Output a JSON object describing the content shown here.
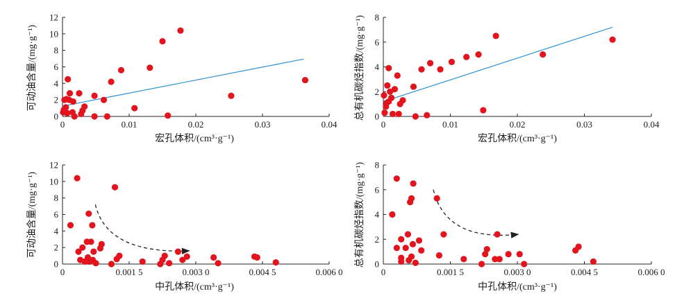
{
  "colors": {
    "point": "#e2141e",
    "fit_line": "#2a8fd4",
    "axis": "#222222",
    "trend_arrow": "#222222"
  },
  "chart_data": [
    {
      "type": "scatter",
      "xlabel": "宏孔体积/(cm³·g⁻¹)",
      "ylabel": "可动油含量/(mg·g⁻¹)",
      "xlim": [
        0,
        0.04
      ],
      "ylim": [
        0,
        12
      ],
      "xticks": [
        0,
        0.01,
        0.02,
        0.03,
        0.04
      ],
      "xtick_labels": [
        "0",
        "0.01",
        "0.02",
        "0.03",
        "0.04"
      ],
      "yticks": [
        0,
        2,
        4,
        6,
        8,
        10,
        12
      ],
      "ytick_labels": [
        "0",
        "2",
        "4",
        "6",
        "8",
        "10",
        "12"
      ],
      "fit_line": {
        "x": [
          0,
          0.0362
        ],
        "y": [
          1.25,
          6.95
        ]
      },
      "points": [
        {
          "x": 0.0001,
          "y": 0.5
        },
        {
          "x": 0.0002,
          "y": 0.8
        },
        {
          "x": 0.0003,
          "y": 2.0
        },
        {
          "x": 0.0006,
          "y": 2.1
        },
        {
          "x": 0.0005,
          "y": 1.1
        },
        {
          "x": 0.0007,
          "y": 0.4
        },
        {
          "x": 0.0008,
          "y": 4.5
        },
        {
          "x": 0.001,
          "y": 2.0
        },
        {
          "x": 0.0011,
          "y": 2.8
        },
        {
          "x": 0.0016,
          "y": 1.8
        },
        {
          "x": 0.0015,
          "y": 0.5
        },
        {
          "x": 0.0018,
          "y": 0.0
        },
        {
          "x": 0.0025,
          "y": 2.8
        },
        {
          "x": 0.0028,
          "y": 0.3
        },
        {
          "x": 0.003,
          "y": 0.7
        },
        {
          "x": 0.0033,
          "y": 1.2
        },
        {
          "x": 0.0048,
          "y": 2.5
        },
        {
          "x": 0.0048,
          "y": 0.0
        },
        {
          "x": 0.0062,
          "y": 2.0
        },
        {
          "x": 0.0067,
          "y": 0.0
        },
        {
          "x": 0.0073,
          "y": 4.2
        },
        {
          "x": 0.0088,
          "y": 5.6
        },
        {
          "x": 0.0108,
          "y": 1.0
        },
        {
          "x": 0.0131,
          "y": 5.9
        },
        {
          "x": 0.015,
          "y": 9.1
        },
        {
          "x": 0.0158,
          "y": 0.1
        },
        {
          "x": 0.0177,
          "y": 10.4
        },
        {
          "x": 0.0253,
          "y": 2.5
        },
        {
          "x": 0.0364,
          "y": 4.4
        }
      ]
    },
    {
      "type": "scatter",
      "xlabel": "宏孔体积/(cm³·g⁻¹)",
      "ylabel": "总有机碳烃指数/(mg·g⁻¹)",
      "xlim": [
        0,
        0.04
      ],
      "ylim": [
        0,
        8
      ],
      "xticks": [
        0,
        0.01,
        0.02,
        0.03,
        0.04
      ],
      "xtick_labels": [
        "0",
        "0.01",
        "0.02",
        "0.03",
        "0.04"
      ],
      "yticks": [
        0,
        2,
        4,
        6,
        8
      ],
      "ytick_labels": [
        "0",
        "2",
        "4",
        "6",
        "8"
      ],
      "fit_line": {
        "x": [
          0,
          0.0342
        ],
        "y": [
          1.2,
          7.2
        ]
      },
      "points": [
        {
          "x": 0.0001,
          "y": 1.7
        },
        {
          "x": 0.0002,
          "y": 0.3
        },
        {
          "x": 0.0004,
          "y": 0.8
        },
        {
          "x": 0.0005,
          "y": 1.1
        },
        {
          "x": 0.0006,
          "y": 2.5
        },
        {
          "x": 0.0008,
          "y": 1.2
        },
        {
          "x": 0.0008,
          "y": 3.9
        },
        {
          "x": 0.001,
          "y": 2.0
        },
        {
          "x": 0.0012,
          "y": 1.5
        },
        {
          "x": 0.0014,
          "y": 0.2
        },
        {
          "x": 0.0017,
          "y": 2.2
        },
        {
          "x": 0.0021,
          "y": 3.3
        },
        {
          "x": 0.0023,
          "y": 0.2
        },
        {
          "x": 0.0025,
          "y": 1.0
        },
        {
          "x": 0.0029,
          "y": 1.3
        },
        {
          "x": 0.0045,
          "y": 2.4
        },
        {
          "x": 0.0048,
          "y": 0.0
        },
        {
          "x": 0.0057,
          "y": 3.8
        },
        {
          "x": 0.0065,
          "y": 0.1
        },
        {
          "x": 0.007,
          "y": 4.3
        },
        {
          "x": 0.0085,
          "y": 3.8
        },
        {
          "x": 0.0102,
          "y": 4.4
        },
        {
          "x": 0.0124,
          "y": 4.8
        },
        {
          "x": 0.0142,
          "y": 5.0
        },
        {
          "x": 0.0149,
          "y": 0.5
        },
        {
          "x": 0.0168,
          "y": 6.5
        },
        {
          "x": 0.0238,
          "y": 5.0
        },
        {
          "x": 0.0342,
          "y": 6.2
        }
      ]
    },
    {
      "type": "scatter",
      "xlabel": "中孔体积/(cm³·g⁻¹)",
      "ylabel": "可动油含量/(mg·g⁻¹)",
      "xlim": [
        0,
        0.006
      ],
      "ylim": [
        0,
        12
      ],
      "xticks": [
        0,
        0.0015,
        0.003,
        0.0045,
        0.006
      ],
      "xtick_labels": [
        "0",
        "0.001 5",
        "0.003 0",
        "0.004 5",
        "0.006 0"
      ],
      "yticks": [
        0,
        2,
        4,
        6,
        8,
        10,
        12
      ],
      "ytick_labels": [
        "0",
        "2",
        "4",
        "6",
        "8",
        "10",
        "12"
      ],
      "trend_arrow": {
        "start": [
          0.00074,
          7.2
        ],
        "control": [
          0.001,
          1.2
        ],
        "end": [
          0.00285,
          1.6
        ]
      },
      "points": [
        {
          "x": 0.00018,
          "y": 4.7
        },
        {
          "x": 0.00033,
          "y": 10.4
        },
        {
          "x": 0.00036,
          "y": 1.5
        },
        {
          "x": 0.0004,
          "y": 0.5
        },
        {
          "x": 0.00045,
          "y": 2.0
        },
        {
          "x": 0.0005,
          "y": 0.3
        },
        {
          "x": 0.00055,
          "y": 2.7
        },
        {
          "x": 0.00057,
          "y": 0.8
        },
        {
          "x": 0.00059,
          "y": 6.1
        },
        {
          "x": 0.00061,
          "y": 0.3
        },
        {
          "x": 0.00064,
          "y": 2.7
        },
        {
          "x": 0.00067,
          "y": 4.7
        },
        {
          "x": 0.00068,
          "y": 0.5
        },
        {
          "x": 0.0007,
          "y": 1.5
        },
        {
          "x": 0.00075,
          "y": 0.1
        },
        {
          "x": 0.00085,
          "y": 1.9
        },
        {
          "x": 0.00088,
          "y": 2.4
        },
        {
          "x": 0.0011,
          "y": 0.0
        },
        {
          "x": 0.00118,
          "y": 9.3
        },
        {
          "x": 0.00122,
          "y": 0.6
        },
        {
          "x": 0.00128,
          "y": 1.0
        },
        {
          "x": 0.0018,
          "y": 0.3
        },
        {
          "x": 0.0022,
          "y": 0.0
        },
        {
          "x": 0.00225,
          "y": 0.5
        },
        {
          "x": 0.0023,
          "y": 1.0
        },
        {
          "x": 0.0024,
          "y": 0.1
        },
        {
          "x": 0.0026,
          "y": 1.5
        },
        {
          "x": 0.0027,
          "y": 0.5
        },
        {
          "x": 0.0028,
          "y": 0.9
        },
        {
          "x": 0.0034,
          "y": 0.8
        },
        {
          "x": 0.0035,
          "y": 0.1
        },
        {
          "x": 0.00432,
          "y": 0.9
        },
        {
          "x": 0.00438,
          "y": 0.8
        },
        {
          "x": 0.0048,
          "y": 0.2
        }
      ]
    },
    {
      "type": "scatter",
      "xlabel": "中孔体积/(cm³·g⁻¹)",
      "ylabel": "总有机碳烃指数/(mg·g⁻¹)",
      "xlim": [
        0,
        0.006
      ],
      "ylim": [
        0,
        8
      ],
      "xticks": [
        0,
        0.0015,
        0.003,
        0.0045,
        0.006
      ],
      "xtick_labels": [
        "0",
        "0.001 5",
        "0.003 0",
        "0.004 5",
        "0.006 0"
      ],
      "yticks": [
        0,
        2,
        4,
        6,
        8
      ],
      "ytick_labels": [
        "0",
        "2",
        "4",
        "6",
        "8"
      ],
      "trend_arrow": {
        "start": [
          0.00112,
          6.0
        ],
        "control": [
          0.0014,
          1.8
        ],
        "end": [
          0.00302,
          2.4
        ]
      },
      "points": [
        {
          "x": 0.0002,
          "y": 4.0
        },
        {
          "x": 0.0003,
          "y": 6.9
        },
        {
          "x": 0.0003,
          "y": 1.3
        },
        {
          "x": 0.0004,
          "y": 0.2
        },
        {
          "x": 0.0004,
          "y": 0.5
        },
        {
          "x": 0.0004,
          "y": 2.0
        },
        {
          "x": 0.0005,
          "y": 1.3
        },
        {
          "x": 0.00055,
          "y": 2.4
        },
        {
          "x": 0.00057,
          "y": 0.3
        },
        {
          "x": 0.0006,
          "y": 5.0
        },
        {
          "x": 0.00063,
          "y": 5.3
        },
        {
          "x": 0.00063,
          "y": 0.6
        },
        {
          "x": 0.00066,
          "y": 1.6
        },
        {
          "x": 0.00067,
          "y": 6.5
        },
        {
          "x": 0.00072,
          "y": 0.1
        },
        {
          "x": 0.0008,
          "y": 1.9
        },
        {
          "x": 0.00085,
          "y": 1.1
        },
        {
          "x": 0.0012,
          "y": 5.3
        },
        {
          "x": 0.00125,
          "y": 0.7
        },
        {
          "x": 0.00135,
          "y": 2.4
        },
        {
          "x": 0.0018,
          "y": 0.4
        },
        {
          "x": 0.0022,
          "y": 0.0
        },
        {
          "x": 0.00228,
          "y": 0.8
        },
        {
          "x": 0.00232,
          "y": 1.2
        },
        {
          "x": 0.0025,
          "y": 0.4
        },
        {
          "x": 0.00255,
          "y": 2.4
        },
        {
          "x": 0.0026,
          "y": 0.4
        },
        {
          "x": 0.0028,
          "y": 0.8
        },
        {
          "x": 0.00305,
          "y": 0.8
        },
        {
          "x": 0.00315,
          "y": 0.0
        },
        {
          "x": 0.0043,
          "y": 1.1
        },
        {
          "x": 0.00437,
          "y": 1.4
        },
        {
          "x": 0.0047,
          "y": 0.2
        }
      ]
    }
  ]
}
